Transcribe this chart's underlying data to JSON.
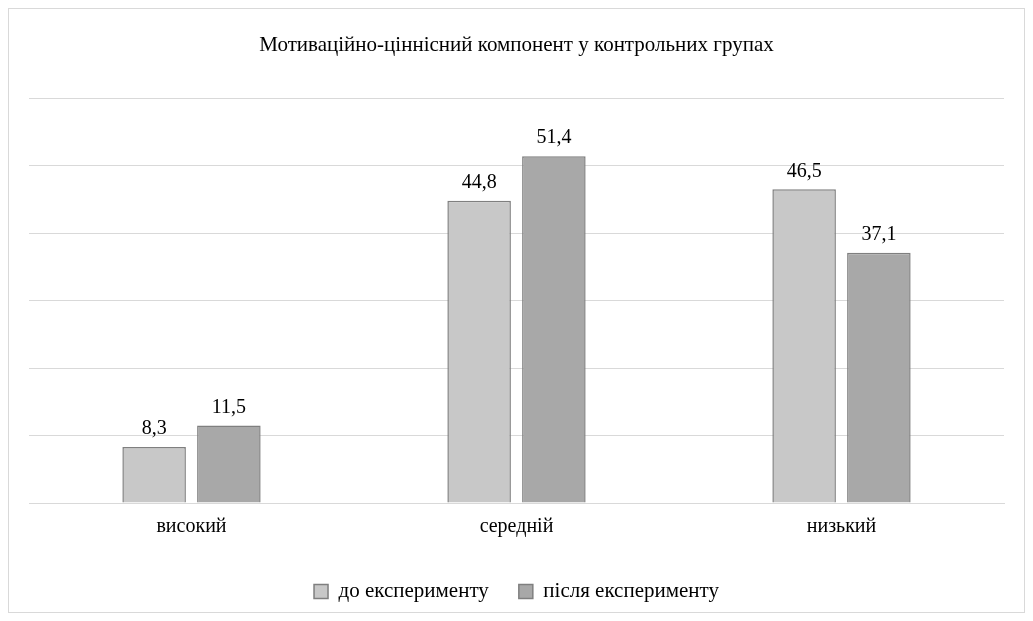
{
  "chart_data": {
    "type": "bar",
    "title": "Мотиваційно-ціннісний компонент у контрольних групах",
    "categories": [
      "високий",
      "середній",
      "низький"
    ],
    "series": [
      {
        "name": "до експерименту",
        "color": "#c8c8c8",
        "values": [
          8.3,
          44.8,
          46.5
        ],
        "value_labels": [
          "8,3",
          "44,8",
          "46,5"
        ]
      },
      {
        "name": "після експерименту",
        "color": "#a8a8a8",
        "values": [
          11.5,
          51.4,
          37.1
        ],
        "value_labels": [
          "11,5",
          "51,4",
          "37,1"
        ]
      }
    ],
    "grid": "y",
    "tick_labels": "x",
    "legend": "bottom"
  }
}
